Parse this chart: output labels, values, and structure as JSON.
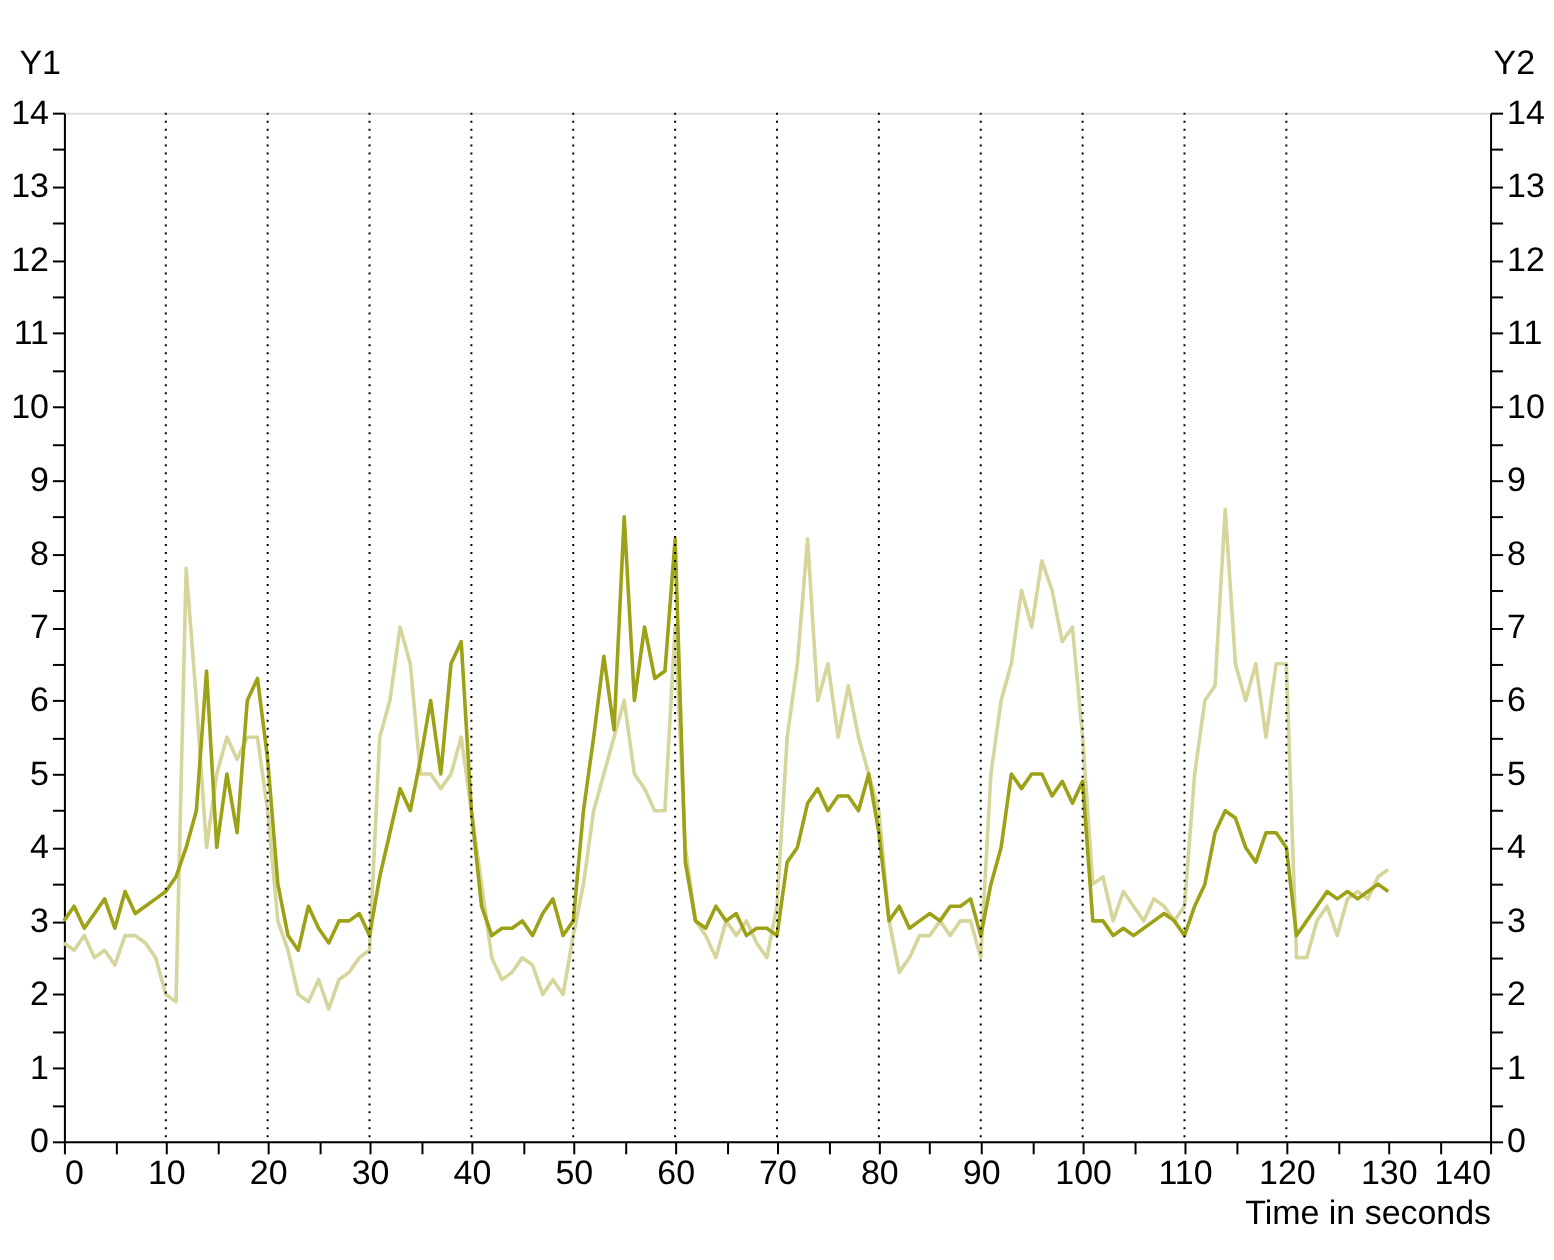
{
  "chart_data": {
    "type": "line",
    "xlabel": "Time in seconds",
    "ylabel": "Y1",
    "y2label": "Y2",
    "xlim": [
      0,
      140
    ],
    "xticks": [
      0,
      {
        "value": 5,
        "label": null
      },
      10,
      {
        "value": 15,
        "label": null
      },
      20,
      {
        "value": 25,
        "label": null
      },
      30,
      {
        "value": 35,
        "label": null
      },
      40,
      {
        "value": 45,
        "label": null
      },
      50,
      {
        "value": 55,
        "label": null
      },
      60,
      {
        "value": 65,
        "label": null
      },
      70,
      {
        "value": 75,
        "label": null
      },
      80,
      {
        "value": 85,
        "label": null
      },
      90,
      {
        "value": 95,
        "label": null
      },
      100,
      {
        "value": 105,
        "label": null
      },
      110,
      {
        "value": 115,
        "label": null
      },
      120,
      {
        "value": 125,
        "label": null
      },
      130,
      {
        "value": 135,
        "label": null
      },
      140
    ],
    "ylim": [
      0,
      14
    ],
    "yticks": [
      0,
      {
        "value": 0.5,
        "label": null
      },
      1,
      {
        "value": 1.5,
        "label": null
      },
      2,
      {
        "value": 2.5,
        "label": null
      },
      3,
      {
        "value": 3.5,
        "label": null
      },
      4,
      {
        "value": 4.5,
        "label": null
      },
      5,
      {
        "value": 5.5,
        "label": null
      },
      6,
      {
        "value": 6.5,
        "label": null
      },
      7,
      {
        "value": 7.5,
        "label": null
      },
      8,
      {
        "value": 8.5,
        "label": null
      },
      9,
      {
        "value": 9.5,
        "label": null
      },
      10,
      {
        "value": 10.5,
        "label": null
      },
      11,
      {
        "value": 11.5,
        "label": null
      },
      12,
      {
        "value": 12.5,
        "label": null
      },
      13,
      {
        "value": 13.5,
        "label": null
      },
      14
    ],
    "y2lim": [
      0,
      14
    ],
    "y2ticks": [
      0,
      {
        "value": 0.5,
        "label": null
      },
      1,
      {
        "value": 1.5,
        "label": null
      },
      2,
      {
        "value": 2.5,
        "label": null
      },
      3,
      {
        "value": 3.5,
        "label": null
      },
      4,
      {
        "value": 4.5,
        "label": null
      },
      5,
      {
        "value": 5.5,
        "label": null
      },
      6,
      {
        "value": 6.5,
        "label": null
      },
      7,
      {
        "value": 7.5,
        "label": null
      },
      8,
      {
        "value": 8.5,
        "label": null
      },
      9,
      {
        "value": 9.5,
        "label": null
      },
      10,
      {
        "value": 10.5,
        "label": null
      },
      11,
      {
        "value": 11.5,
        "label": null
      },
      12,
      {
        "value": 12.5,
        "label": null
      },
      13,
      {
        "value": 13.5,
        "label": null
      },
      14
    ],
    "x": [
      0,
      1,
      2,
      3,
      4,
      5,
      6,
      7,
      8,
      9,
      10,
      11,
      12,
      13,
      14,
      15,
      16,
      17,
      18,
      19,
      20,
      21,
      22,
      23,
      24,
      25,
      26,
      27,
      28,
      29,
      30,
      31,
      32,
      33,
      34,
      35,
      36,
      37,
      38,
      39,
      40,
      41,
      42,
      43,
      44,
      45,
      46,
      47,
      48,
      49,
      50,
      51,
      52,
      53,
      54,
      55,
      56,
      57,
      58,
      59,
      60,
      61,
      62,
      63,
      64,
      65,
      66,
      67,
      68,
      69,
      70,
      71,
      72,
      73,
      74,
      75,
      76,
      77,
      78,
      79,
      80,
      81,
      82,
      83,
      84,
      85,
      86,
      87,
      88,
      89,
      90,
      91,
      92,
      93,
      94,
      95,
      96,
      97,
      98,
      99,
      100,
      101,
      102,
      103,
      104,
      105,
      106,
      107,
      108,
      109,
      110,
      111,
      112,
      113,
      114,
      115,
      116,
      117,
      118,
      119,
      120,
      121,
      122,
      123,
      124,
      125,
      126,
      127,
      128,
      129,
      130
    ],
    "series": [
      {
        "color": "#d5d59c",
        "axis": "y2",
        "values": [
          2.7,
          2.6,
          2.8,
          2.5,
          2.6,
          2.4,
          2.8,
          2.8,
          2.7,
          2.5,
          2.0,
          1.9,
          7.8,
          6.0,
          4.0,
          5.0,
          5.5,
          5.2,
          5.5,
          5.5,
          4.5,
          3.0,
          2.6,
          2.0,
          1.9,
          2.2,
          1.8,
          2.2,
          2.3,
          2.5,
          2.6,
          5.5,
          6.0,
          7.0,
          6.5,
          5.0,
          5.0,
          4.8,
          5.0,
          5.5,
          4.5,
          3.5,
          2.5,
          2.2,
          2.3,
          2.5,
          2.4,
          2.0,
          2.2,
          2.0,
          2.8,
          3.5,
          4.5,
          5.0,
          5.5,
          6.0,
          5.0,
          4.8,
          4.5,
          4.5,
          7.0,
          4.0,
          3.0,
          2.8,
          2.5,
          3.0,
          2.8,
          3.0,
          2.7,
          2.5,
          3.2,
          5.5,
          6.5,
          8.2,
          6.0,
          6.5,
          5.5,
          6.2,
          5.5,
          5.0,
          4.5,
          3.0,
          2.3,
          2.5,
          2.8,
          2.8,
          3.0,
          2.8,
          3.0,
          3.0,
          2.5,
          5.0,
          6.0,
          6.5,
          7.5,
          7.0,
          7.9,
          7.5,
          6.8,
          7.0,
          5.5,
          3.5,
          3.6,
          3.0,
          3.4,
          3.2,
          3.0,
          3.3,
          3.2,
          3.0,
          3.2,
          5.0,
          6.0,
          6.2,
          8.6,
          6.5,
          6.0,
          6.5,
          5.5,
          6.5,
          6.5,
          2.5,
          2.5,
          3.0,
          3.2,
          2.8,
          3.3,
          3.4,
          3.3,
          3.6,
          3.7
        ]
      },
      {
        "color": "#9da116",
        "values": [
          3.0,
          3.2,
          2.9,
          3.1,
          3.3,
          2.9,
          3.4,
          3.1,
          3.2,
          3.3,
          3.4,
          3.6,
          4.0,
          4.5,
          6.4,
          4.0,
          5.0,
          4.2,
          6.0,
          6.3,
          5.2,
          3.5,
          2.8,
          2.6,
          3.2,
          2.9,
          2.7,
          3.0,
          3.0,
          3.1,
          2.8,
          3.6,
          4.2,
          4.8,
          4.5,
          5.2,
          6.0,
          5.0,
          6.5,
          6.8,
          4.5,
          3.2,
          2.8,
          2.9,
          2.9,
          3.0,
          2.8,
          3.1,
          3.3,
          2.8,
          3.0,
          4.5,
          5.5,
          6.6,
          5.6,
          8.5,
          6.0,
          7.0,
          6.3,
          6.4,
          8.2,
          3.8,
          3.0,
          2.9,
          3.2,
          3.0,
          3.1,
          2.8,
          2.9,
          2.9,
          2.8,
          3.8,
          4.0,
          4.6,
          4.8,
          4.5,
          4.7,
          4.7,
          4.5,
          5.0,
          4.2,
          3.0,
          3.2,
          2.9,
          3.0,
          3.1,
          3.0,
          3.2,
          3.2,
          3.3,
          2.8,
          3.5,
          4.0,
          5.0,
          4.8,
          5.0,
          5.0,
          4.7,
          4.9,
          4.6,
          4.9,
          3.0,
          3.0,
          2.8,
          2.9,
          2.8,
          2.9,
          3.0,
          3.1,
          3.0,
          2.8,
          3.2,
          3.5,
          4.2,
          4.5,
          4.4,
          4.0,
          3.8,
          4.2,
          4.2,
          4.0,
          2.8,
          3.0,
          3.2,
          3.4,
          3.3,
          3.4,
          3.3,
          3.4,
          3.5,
          3.4
        ]
      }
    ],
    "ref_lines": [
      {
        "axis": "x",
        "value": 10
      },
      {
        "axis": "x",
        "value": 20
      },
      {
        "axis": "x",
        "value": 30
      },
      {
        "axis": "x",
        "value": 40
      },
      {
        "axis": "x",
        "value": 50
      },
      {
        "axis": "x",
        "value": 60
      },
      {
        "axis": "x",
        "value": 70
      },
      {
        "axis": "x",
        "value": 80
      },
      {
        "axis": "x",
        "value": 90
      },
      {
        "axis": "x",
        "value": 100
      },
      {
        "axis": "x",
        "value": 110
      },
      {
        "axis": "x",
        "value": 120
      }
    ],
    "grid": false,
    "marker": "none",
    "line_style": "solid"
  }
}
